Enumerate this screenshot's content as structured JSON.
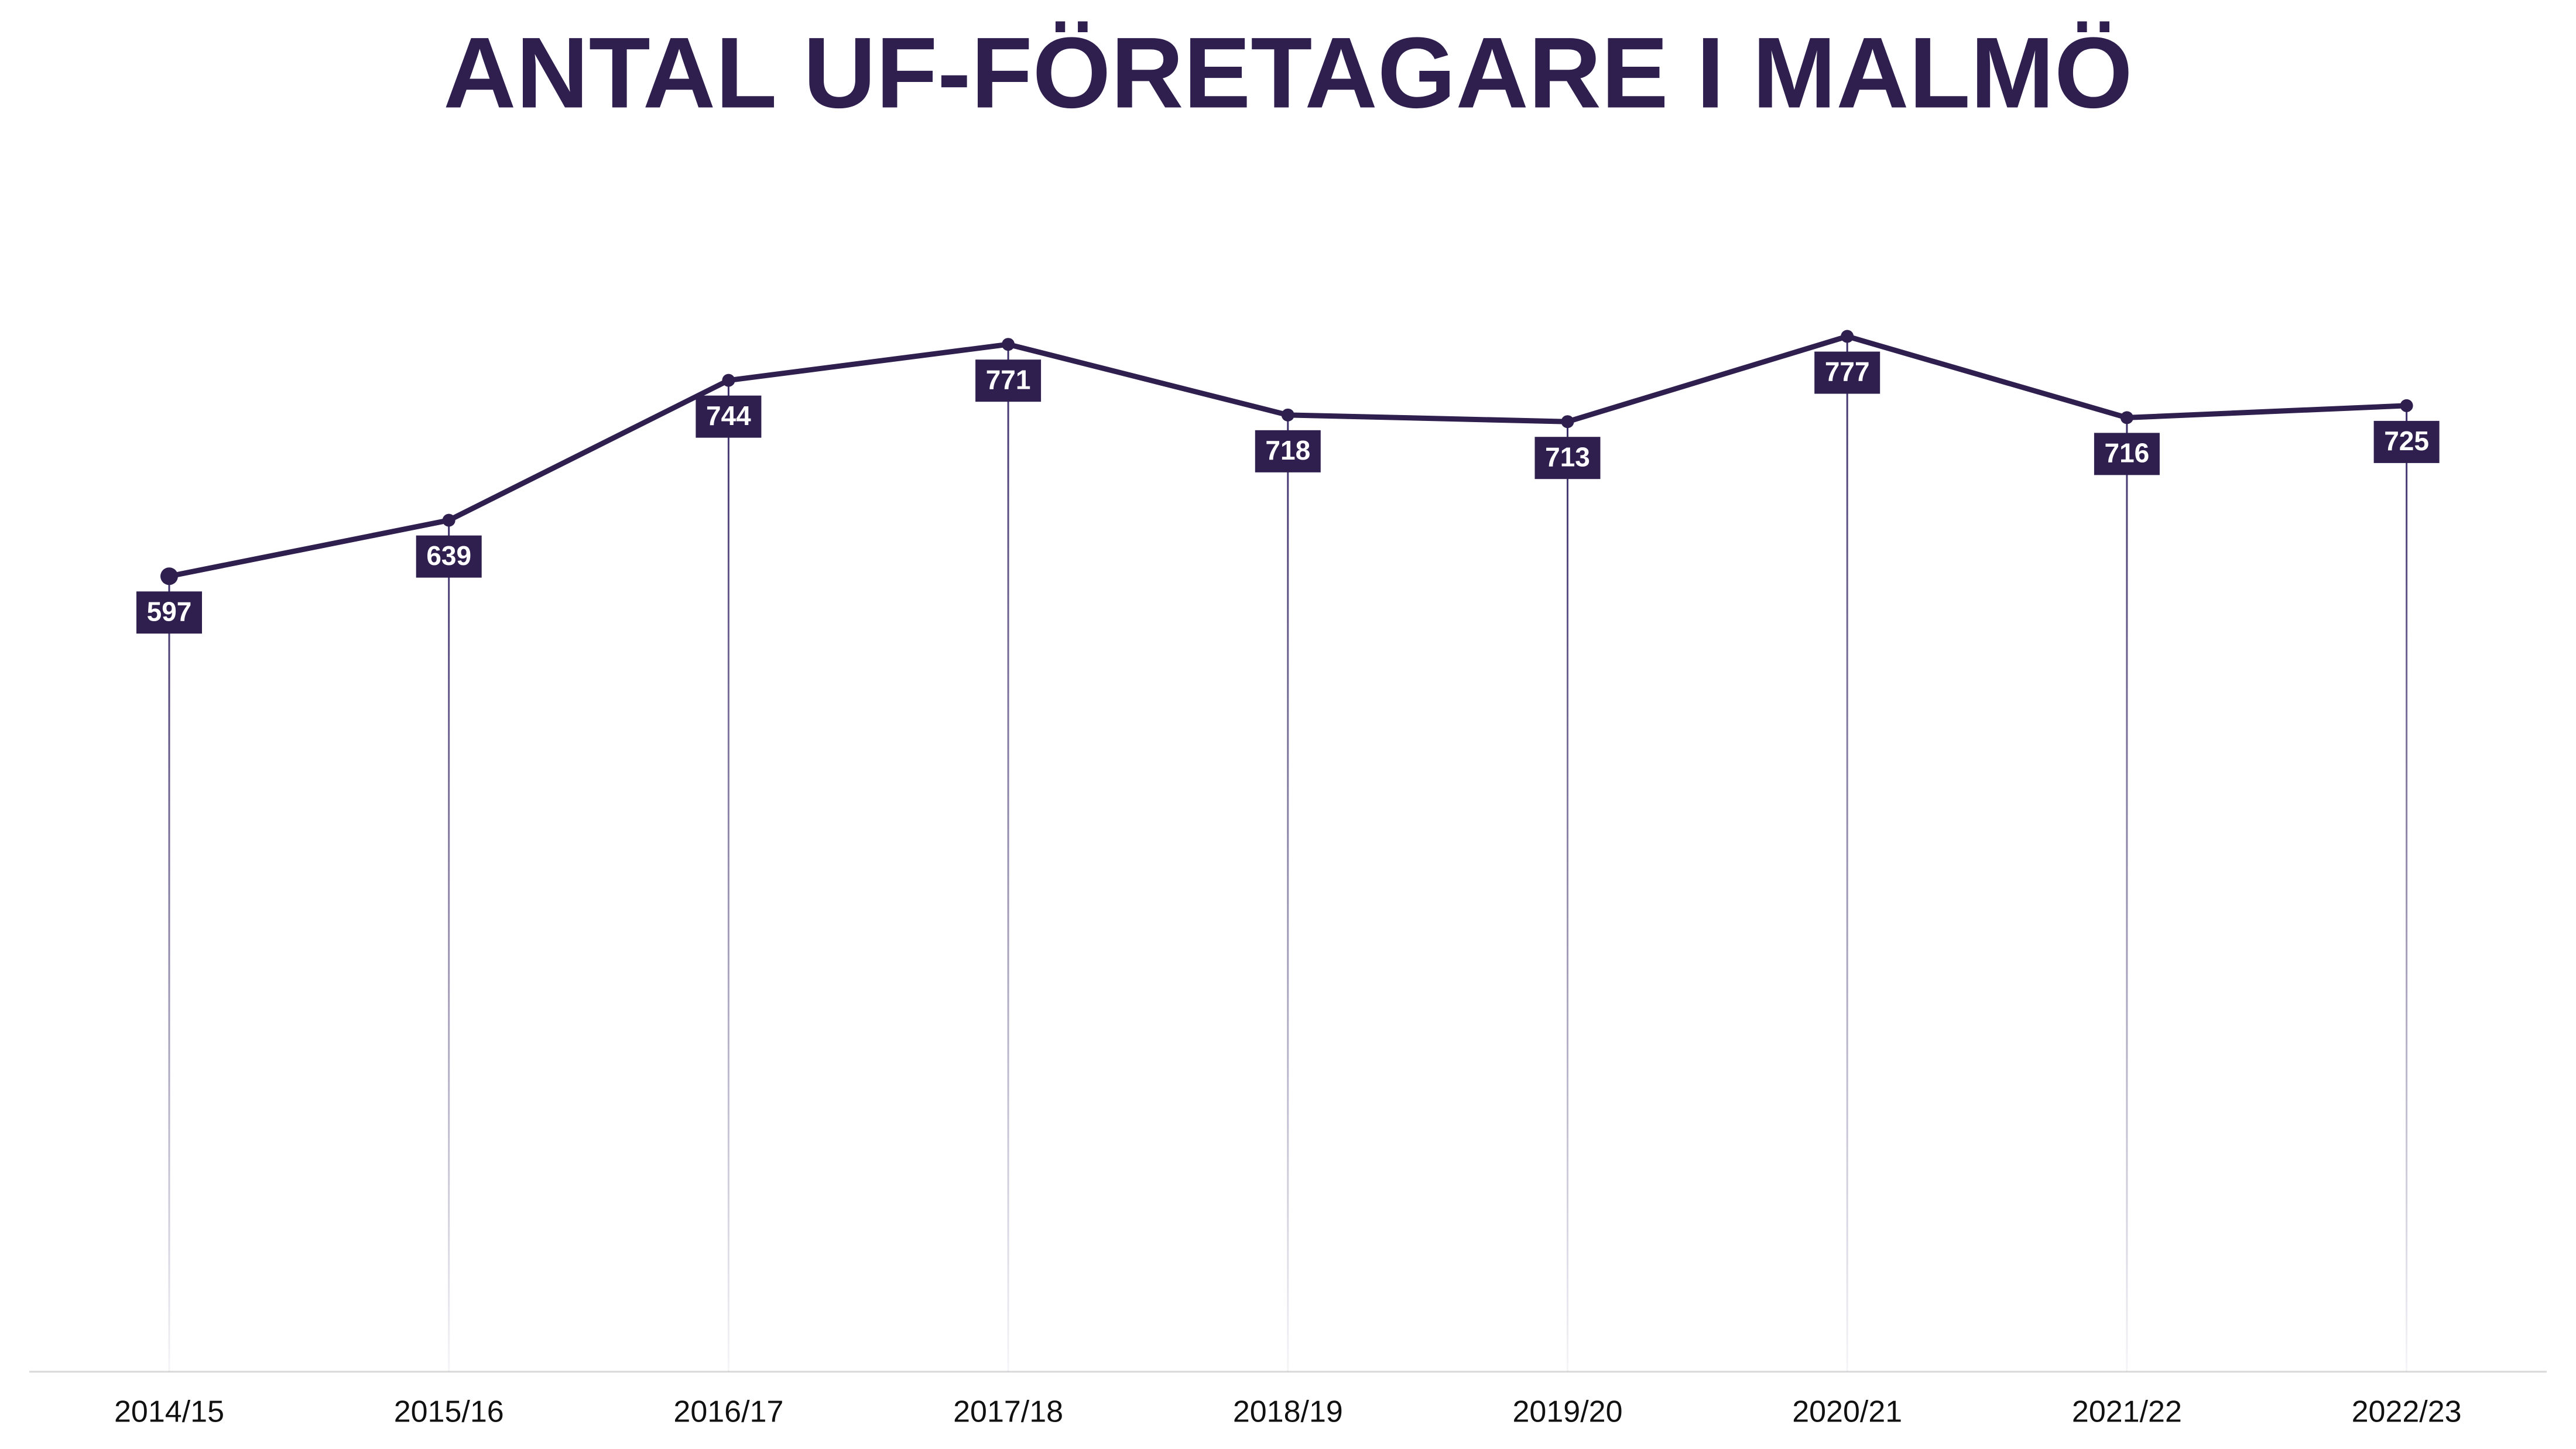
{
  "chart_data": {
    "type": "line",
    "title": "ANTAL UF-FÖRETAGARE I MALMÖ",
    "categories": [
      "2014/15",
      "2015/16",
      "2016/17",
      "2017/18",
      "2018/19",
      "2019/20",
      "2020/21",
      "2021/22",
      "2022/23"
    ],
    "values": [
      597,
      639,
      744,
      771,
      718,
      713,
      777,
      716,
      725
    ],
    "color": "#2e1f4f",
    "ylim": [
      0,
      1000
    ]
  }
}
